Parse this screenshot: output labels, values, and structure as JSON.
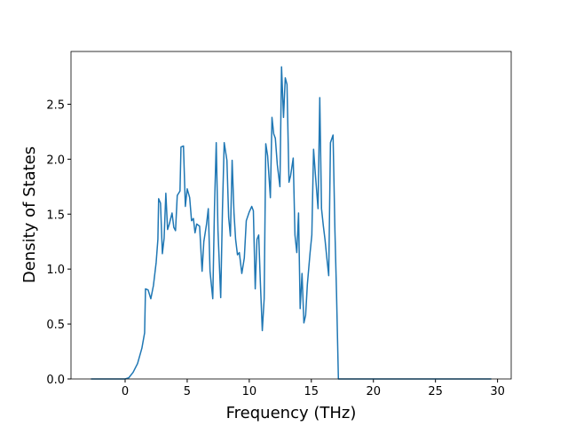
{
  "chart_data": {
    "type": "line",
    "xlabel": "Frequency (THz)",
    "ylabel": "Density of States",
    "xlim": [
      -4.36,
      31.1
    ],
    "ylim": [
      0,
      2.98
    ],
    "xticks": [
      0,
      5,
      10,
      15,
      20,
      25,
      30
    ],
    "yticks": [
      {
        "value": 0,
        "label": "0.0"
      },
      {
        "value": 0.5,
        "label": "0.5"
      },
      {
        "value": 1,
        "label": "1.0"
      },
      {
        "value": 1.5,
        "label": "1.5"
      },
      {
        "value": 2,
        "label": "2.0"
      },
      {
        "value": 2.5,
        "label": "2.5"
      }
    ],
    "series": [
      {
        "color": "#1f77b4",
        "x": [
          -2.75,
          0,
          0.29,
          0.64,
          1.0,
          1.35,
          1.57,
          1.64,
          1.85,
          2.07,
          2.28,
          2.5,
          2.64,
          2.7,
          2.85,
          3.0,
          3.14,
          3.28,
          3.42,
          3.56,
          3.78,
          3.92,
          4.06,
          4.2,
          4.42,
          4.5,
          4.7,
          4.85,
          5.0,
          5.2,
          5.35,
          5.5,
          5.63,
          5.77,
          6.0,
          6.2,
          6.34,
          6.56,
          6.7,
          6.84,
          7.06,
          7.2,
          7.34,
          7.48,
          7.7,
          7.84,
          7.98,
          8.2,
          8.34,
          8.48,
          8.62,
          8.77,
          8.9,
          9.05,
          9.2,
          9.4,
          9.6,
          9.76,
          10.0,
          10.2,
          10.33,
          10.48,
          10.62,
          10.76,
          10.9,
          11.05,
          11.2,
          11.33,
          11.48,
          11.7,
          11.83,
          11.97,
          12.1,
          12.26,
          12.47,
          12.6,
          12.76,
          12.9,
          13.04,
          13.2,
          13.33,
          13.54,
          13.68,
          13.83,
          13.97,
          14.1,
          14.25,
          14.4,
          14.54,
          14.68,
          14.9,
          15.04,
          15.18,
          15.32,
          15.54,
          15.68,
          15.82,
          15.97,
          16.1,
          16.25,
          16.4,
          16.54,
          16.75,
          16.9,
          17.03,
          17.18,
          29.5
        ],
        "values": [
          0,
          0,
          0.01,
          0.06,
          0.14,
          0.28,
          0.42,
          0.82,
          0.81,
          0.73,
          0.85,
          1.06,
          1.27,
          1.64,
          1.6,
          1.14,
          1.28,
          1.69,
          1.36,
          1.41,
          1.51,
          1.38,
          1.35,
          1.67,
          1.71,
          2.11,
          2.12,
          1.57,
          1.73,
          1.65,
          1.44,
          1.46,
          1.33,
          1.41,
          1.39,
          0.98,
          1.25,
          1.41,
          1.55,
          0.98,
          0.73,
          1.57,
          2.15,
          1.35,
          0.74,
          1.54,
          2.15,
          1.99,
          1.47,
          1.3,
          1.99,
          1.51,
          1.27,
          1.13,
          1.15,
          0.96,
          1.1,
          1.44,
          1.52,
          1.57,
          1.53,
          0.82,
          1.27,
          1.31,
          0.86,
          0.44,
          0.73,
          2.14,
          2.03,
          1.65,
          2.38,
          2.23,
          2.19,
          1.95,
          1.75,
          2.84,
          2.38,
          2.74,
          2.68,
          1.79,
          1.85,
          2.01,
          1.31,
          1.15,
          1.51,
          0.64,
          0.96,
          0.51,
          0.58,
          0.86,
          1.15,
          1.31,
          2.09,
          1.87,
          1.55,
          2.56,
          1.55,
          1.39,
          1.27,
          1.1,
          0.94,
          2.15,
          2.22,
          1.35,
          0.78,
          0,
          0
        ]
      }
    ]
  }
}
